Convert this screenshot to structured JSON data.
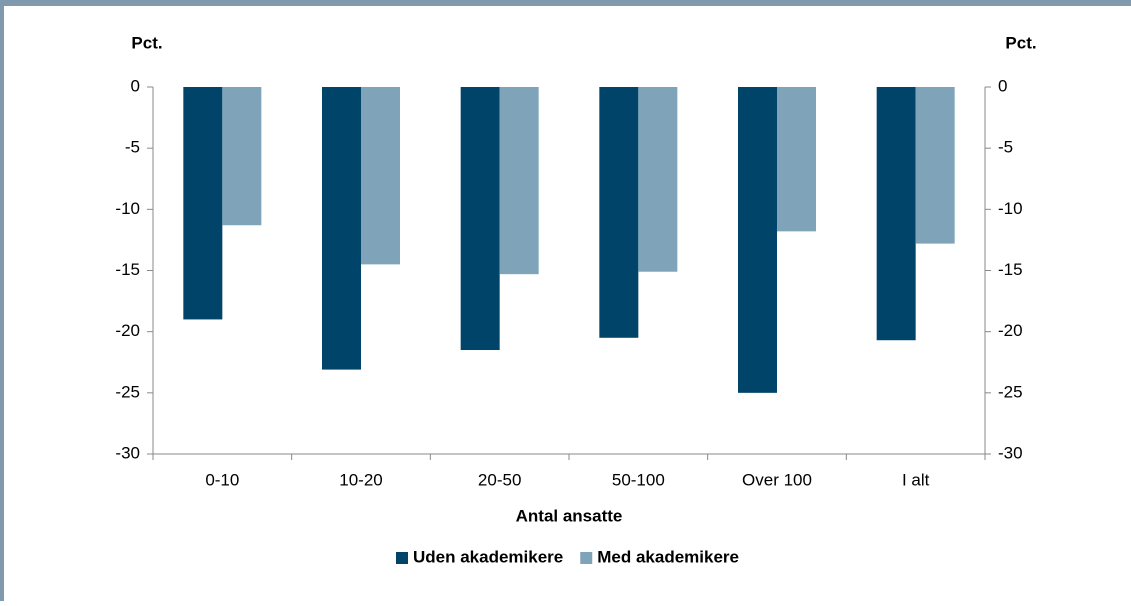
{
  "chart_data": {
    "type": "bar",
    "ylabel": "Pct.",
    "y2label": "Pct.",
    "xlabel": "Antal ansatte",
    "categories": [
      "0-10",
      "10-20",
      "20-50",
      "50-100",
      "Over 100",
      "I alt"
    ],
    "series": [
      {
        "name": "Uden akademikere",
        "color": "#00446a",
        "values": [
          -19,
          -23.1,
          -21.5,
          -20.5,
          -25,
          -20.7
        ]
      },
      {
        "name": "Med akademikere",
        "color": "#7fa3b9",
        "values": [
          -11.3,
          -14.5,
          -15.3,
          -15.1,
          -11.8,
          -12.8
        ]
      }
    ],
    "ylim": [
      -30,
      0
    ],
    "yticks": [
      0,
      -5,
      -10,
      -15,
      -20,
      -25,
      -30
    ],
    "y2lim": [
      -30,
      0
    ],
    "y2ticks": [
      0,
      -5,
      -10,
      -15,
      -20,
      -25,
      -30
    ],
    "legend": "bottom"
  }
}
